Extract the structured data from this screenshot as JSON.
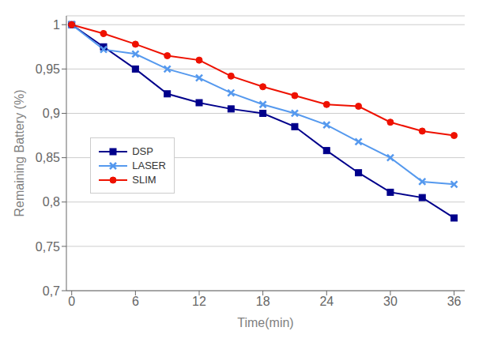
{
  "chart_data": {
    "type": "line",
    "x": [
      0,
      3,
      6,
      9,
      12,
      15,
      18,
      21,
      24,
      27,
      30,
      33,
      36
    ],
    "series": [
      {
        "name": "DSP",
        "color": "#00008B",
        "marker": "square",
        "values": [
          1.0,
          0.975,
          0.95,
          0.922,
          0.912,
          0.905,
          0.9,
          0.885,
          0.858,
          0.833,
          0.811,
          0.805,
          0.782
        ]
      },
      {
        "name": "LASER",
        "color": "#5599EE",
        "marker": "x",
        "values": [
          1.0,
          0.972,
          0.967,
          0.95,
          0.94,
          0.923,
          0.91,
          0.9,
          0.887,
          0.868,
          0.85,
          0.823,
          0.82
        ]
      },
      {
        "name": "SLIM",
        "color": "#EE1100",
        "marker": "circle",
        "values": [
          1.0,
          0.99,
          0.978,
          0.965,
          0.96,
          0.942,
          0.93,
          0.92,
          0.91,
          0.908,
          0.89,
          0.88,
          0.875
        ]
      }
    ],
    "xlabel": "Time(min)",
    "ylabel": "Remaining Battery (%)",
    "xlim": [
      -0.5,
      37
    ],
    "ylim": [
      0.7,
      1.01
    ],
    "xticks": [
      0,
      6,
      12,
      18,
      24,
      30,
      36
    ],
    "yticks": [
      {
        "value": 0.7,
        "label": "0,7"
      },
      {
        "value": 0.75,
        "label": "0,75"
      },
      {
        "value": 0.8,
        "label": "0,8"
      },
      {
        "value": 0.85,
        "label": "0,85"
      },
      {
        "value": 0.9,
        "label": "0,9"
      },
      {
        "value": 0.95,
        "label": "0,95"
      },
      {
        "value": 1.0,
        "label": "1"
      }
    ],
    "grid": true,
    "legend": "center left"
  }
}
